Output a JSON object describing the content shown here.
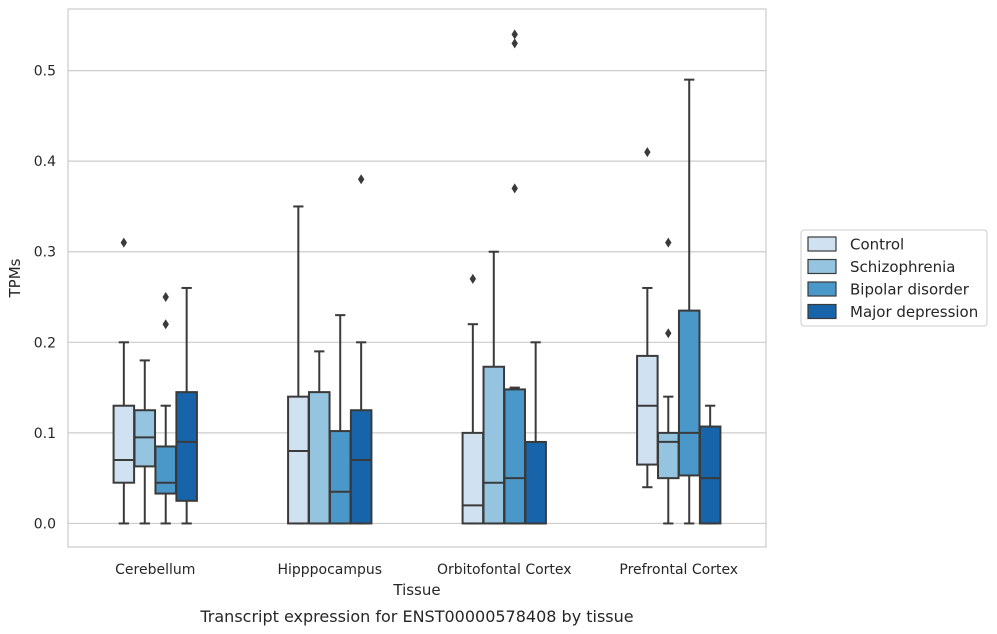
{
  "chart_data": {
    "type": "box",
    "xlabel": "Tissue",
    "ylabel": "TPMs",
    "caption": "Transcript expression for ENST00000578408 by tissue",
    "ylim": [
      -0.026,
      0.568
    ],
    "yticks": [
      0.0,
      0.1,
      0.2,
      0.3,
      0.4,
      0.5
    ],
    "ytick_labels": [
      "0.0",
      "0.1",
      "0.2",
      "0.3",
      "0.4",
      "0.5"
    ],
    "grid": "horizontal",
    "legend_position": "right",
    "categories": [
      "Cerebellum",
      "Hipppocampus",
      "Orbitofontal Cortex",
      "Prefrontal Cortex"
    ],
    "series": [
      {
        "name": "Control",
        "color": "#d0e1f2",
        "boxes": [
          {
            "whislo": 0.0,
            "q1": 0.045,
            "med": 0.07,
            "q3": 0.13,
            "whishi": 0.2,
            "fliers": [
              0.31
            ]
          },
          {
            "whislo": 0.0,
            "q1": 0.0,
            "med": 0.08,
            "q3": 0.14,
            "whishi": 0.35,
            "fliers": []
          },
          {
            "whislo": 0.0,
            "q1": 0.0,
            "med": 0.02,
            "q3": 0.1,
            "whishi": 0.22,
            "fliers": [
              0.27
            ]
          },
          {
            "whislo": 0.04,
            "q1": 0.065,
            "med": 0.13,
            "q3": 0.185,
            "whishi": 0.26,
            "fliers": [
              0.41
            ]
          }
        ]
      },
      {
        "name": "Schizophrenia",
        "color": "#94c4df",
        "boxes": [
          {
            "whislo": 0.0,
            "q1": 0.063,
            "med": 0.095,
            "q3": 0.125,
            "whishi": 0.18,
            "fliers": []
          },
          {
            "whislo": 0.0,
            "q1": 0.0,
            "med": 0.0,
            "q3": 0.145,
            "whishi": 0.19,
            "fliers": []
          },
          {
            "whislo": 0.0,
            "q1": 0.0,
            "med": 0.045,
            "q3": 0.173,
            "whishi": 0.3,
            "fliers": []
          },
          {
            "whislo": 0.0,
            "q1": 0.05,
            "med": 0.09,
            "q3": 0.1,
            "whishi": 0.14,
            "fliers": [
              0.21,
              0.31
            ]
          }
        ]
      },
      {
        "name": "Bipolar disorder",
        "color": "#4a98c9",
        "boxes": [
          {
            "whislo": 0.0,
            "q1": 0.033,
            "med": 0.045,
            "q3": 0.085,
            "whishi": 0.13,
            "fliers": [
              0.22,
              0.25
            ]
          },
          {
            "whislo": 0.0,
            "q1": 0.0,
            "med": 0.035,
            "q3": 0.102,
            "whishi": 0.23,
            "fliers": []
          },
          {
            "whislo": 0.0,
            "q1": 0.0,
            "med": 0.05,
            "q3": 0.148,
            "whishi": 0.15,
            "fliers": [
              0.37,
              0.53,
              0.54
            ]
          },
          {
            "whislo": 0.0,
            "q1": 0.053,
            "med": 0.1,
            "q3": 0.235,
            "whishi": 0.49,
            "fliers": []
          }
        ]
      },
      {
        "name": "Major depression",
        "color": "#1764ab",
        "boxes": [
          {
            "whislo": 0.0,
            "q1": 0.025,
            "med": 0.09,
            "q3": 0.145,
            "whishi": 0.26,
            "fliers": []
          },
          {
            "whislo": 0.0,
            "q1": 0.0,
            "med": 0.07,
            "q3": 0.125,
            "whishi": 0.2,
            "fliers": [
              0.38
            ]
          },
          {
            "whislo": 0.0,
            "q1": 0.0,
            "med": 0.0,
            "q3": 0.09,
            "whishi": 0.2,
            "fliers": []
          },
          {
            "whislo": 0.0,
            "q1": 0.0,
            "med": 0.05,
            "q3": 0.107,
            "whishi": 0.13,
            "fliers": []
          }
        ]
      }
    ]
  }
}
